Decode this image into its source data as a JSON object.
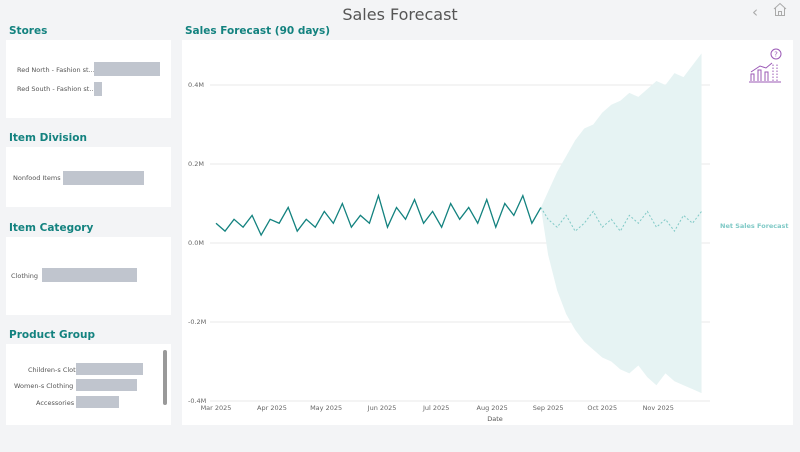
{
  "header": {
    "title": "Sales Forecast",
    "back_icon": "chevron-left-icon",
    "home_icon": "home-icon"
  },
  "filters": {
    "stores": {
      "title": "Stores",
      "items": [
        {
          "label": "Red North - Fashion st...",
          "value": 1.0
        },
        {
          "label": "Red South - Fashion st...",
          "value": 0.12
        }
      ]
    },
    "division": {
      "title": "Item Division",
      "items": [
        {
          "label": "Nonfood Items",
          "value": 1.0
        }
      ]
    },
    "category": {
      "title": "Item Category",
      "items": [
        {
          "label": "Clothing",
          "value": 1.0
        }
      ]
    },
    "product_group": {
      "title": "Product Group",
      "items": [
        {
          "label": "Children-s Clothing",
          "value": 1.0
        },
        {
          "label": "Women-s Clothing",
          "value": 0.91
        },
        {
          "label": "Accessories",
          "value": 0.63
        }
      ]
    }
  },
  "chart_data": {
    "type": "line",
    "title": "Sales Forecast (90 days)",
    "xlabel": "Date",
    "ylabel": "",
    "ylim": [
      -0.4,
      0.4
    ],
    "y_ticks": [
      "0.4M",
      "0.2M",
      "0.0M",
      "-0.2M",
      "-0.4M"
    ],
    "y_tick_values": [
      0.4,
      0.2,
      0,
      -0.2,
      -0.4
    ],
    "x_ticks": [
      "Mar 2025",
      "Apr 2025",
      "May 2025",
      "Jun 2025",
      "Jul 2025",
      "Aug 2025",
      "Sep 2025",
      "Oct 2025",
      "Nov 2025"
    ],
    "x_tick_dates": [
      "2025-03-01",
      "2025-04-01",
      "2025-05-01",
      "2025-06-01",
      "2025-07-01",
      "2025-08-01",
      "2025-09-01",
      "2025-10-01",
      "2025-11-01"
    ],
    "grid": true,
    "actual": {
      "start": "2025-03-01",
      "step_days": 5,
      "color": "#13827f",
      "values": [
        0.05,
        0.03,
        0.06,
        0.04,
        0.07,
        0.02,
        0.06,
        0.05,
        0.09,
        0.03,
        0.06,
        0.04,
        0.08,
        0.05,
        0.1,
        0.04,
        0.07,
        0.05,
        0.12,
        0.04,
        0.09,
        0.06,
        0.11,
        0.05,
        0.08,
        0.04,
        0.1,
        0.06,
        0.09,
        0.05,
        0.11,
        0.04,
        0.1,
        0.07,
        0.12,
        0.05,
        0.09
      ]
    },
    "forecast": {
      "name": "Net Sales Forecast",
      "start": "2025-09-01",
      "step_days": 5,
      "color": "#7fc9c6",
      "band_color": "#e6f3f3",
      "values": [
        0.06,
        0.04,
        0.07,
        0.03,
        0.05,
        0.08,
        0.04,
        0.06,
        0.03,
        0.07,
        0.05,
        0.08,
        0.04,
        0.06,
        0.03,
        0.07,
        0.05,
        0.08
      ],
      "upper": [
        0.13,
        0.18,
        0.22,
        0.26,
        0.29,
        0.3,
        0.33,
        0.35,
        0.36,
        0.38,
        0.37,
        0.39,
        0.41,
        0.4,
        0.43,
        0.42,
        0.45,
        0.48
      ],
      "lower": [
        -0.03,
        -0.12,
        -0.18,
        -0.22,
        -0.25,
        -0.27,
        -0.29,
        -0.3,
        -0.32,
        -0.33,
        -0.31,
        -0.34,
        -0.36,
        -0.33,
        -0.35,
        -0.36,
        -0.37,
        -0.38
      ]
    },
    "legend": "right"
  },
  "chart_icon": "forecast-question-icon"
}
